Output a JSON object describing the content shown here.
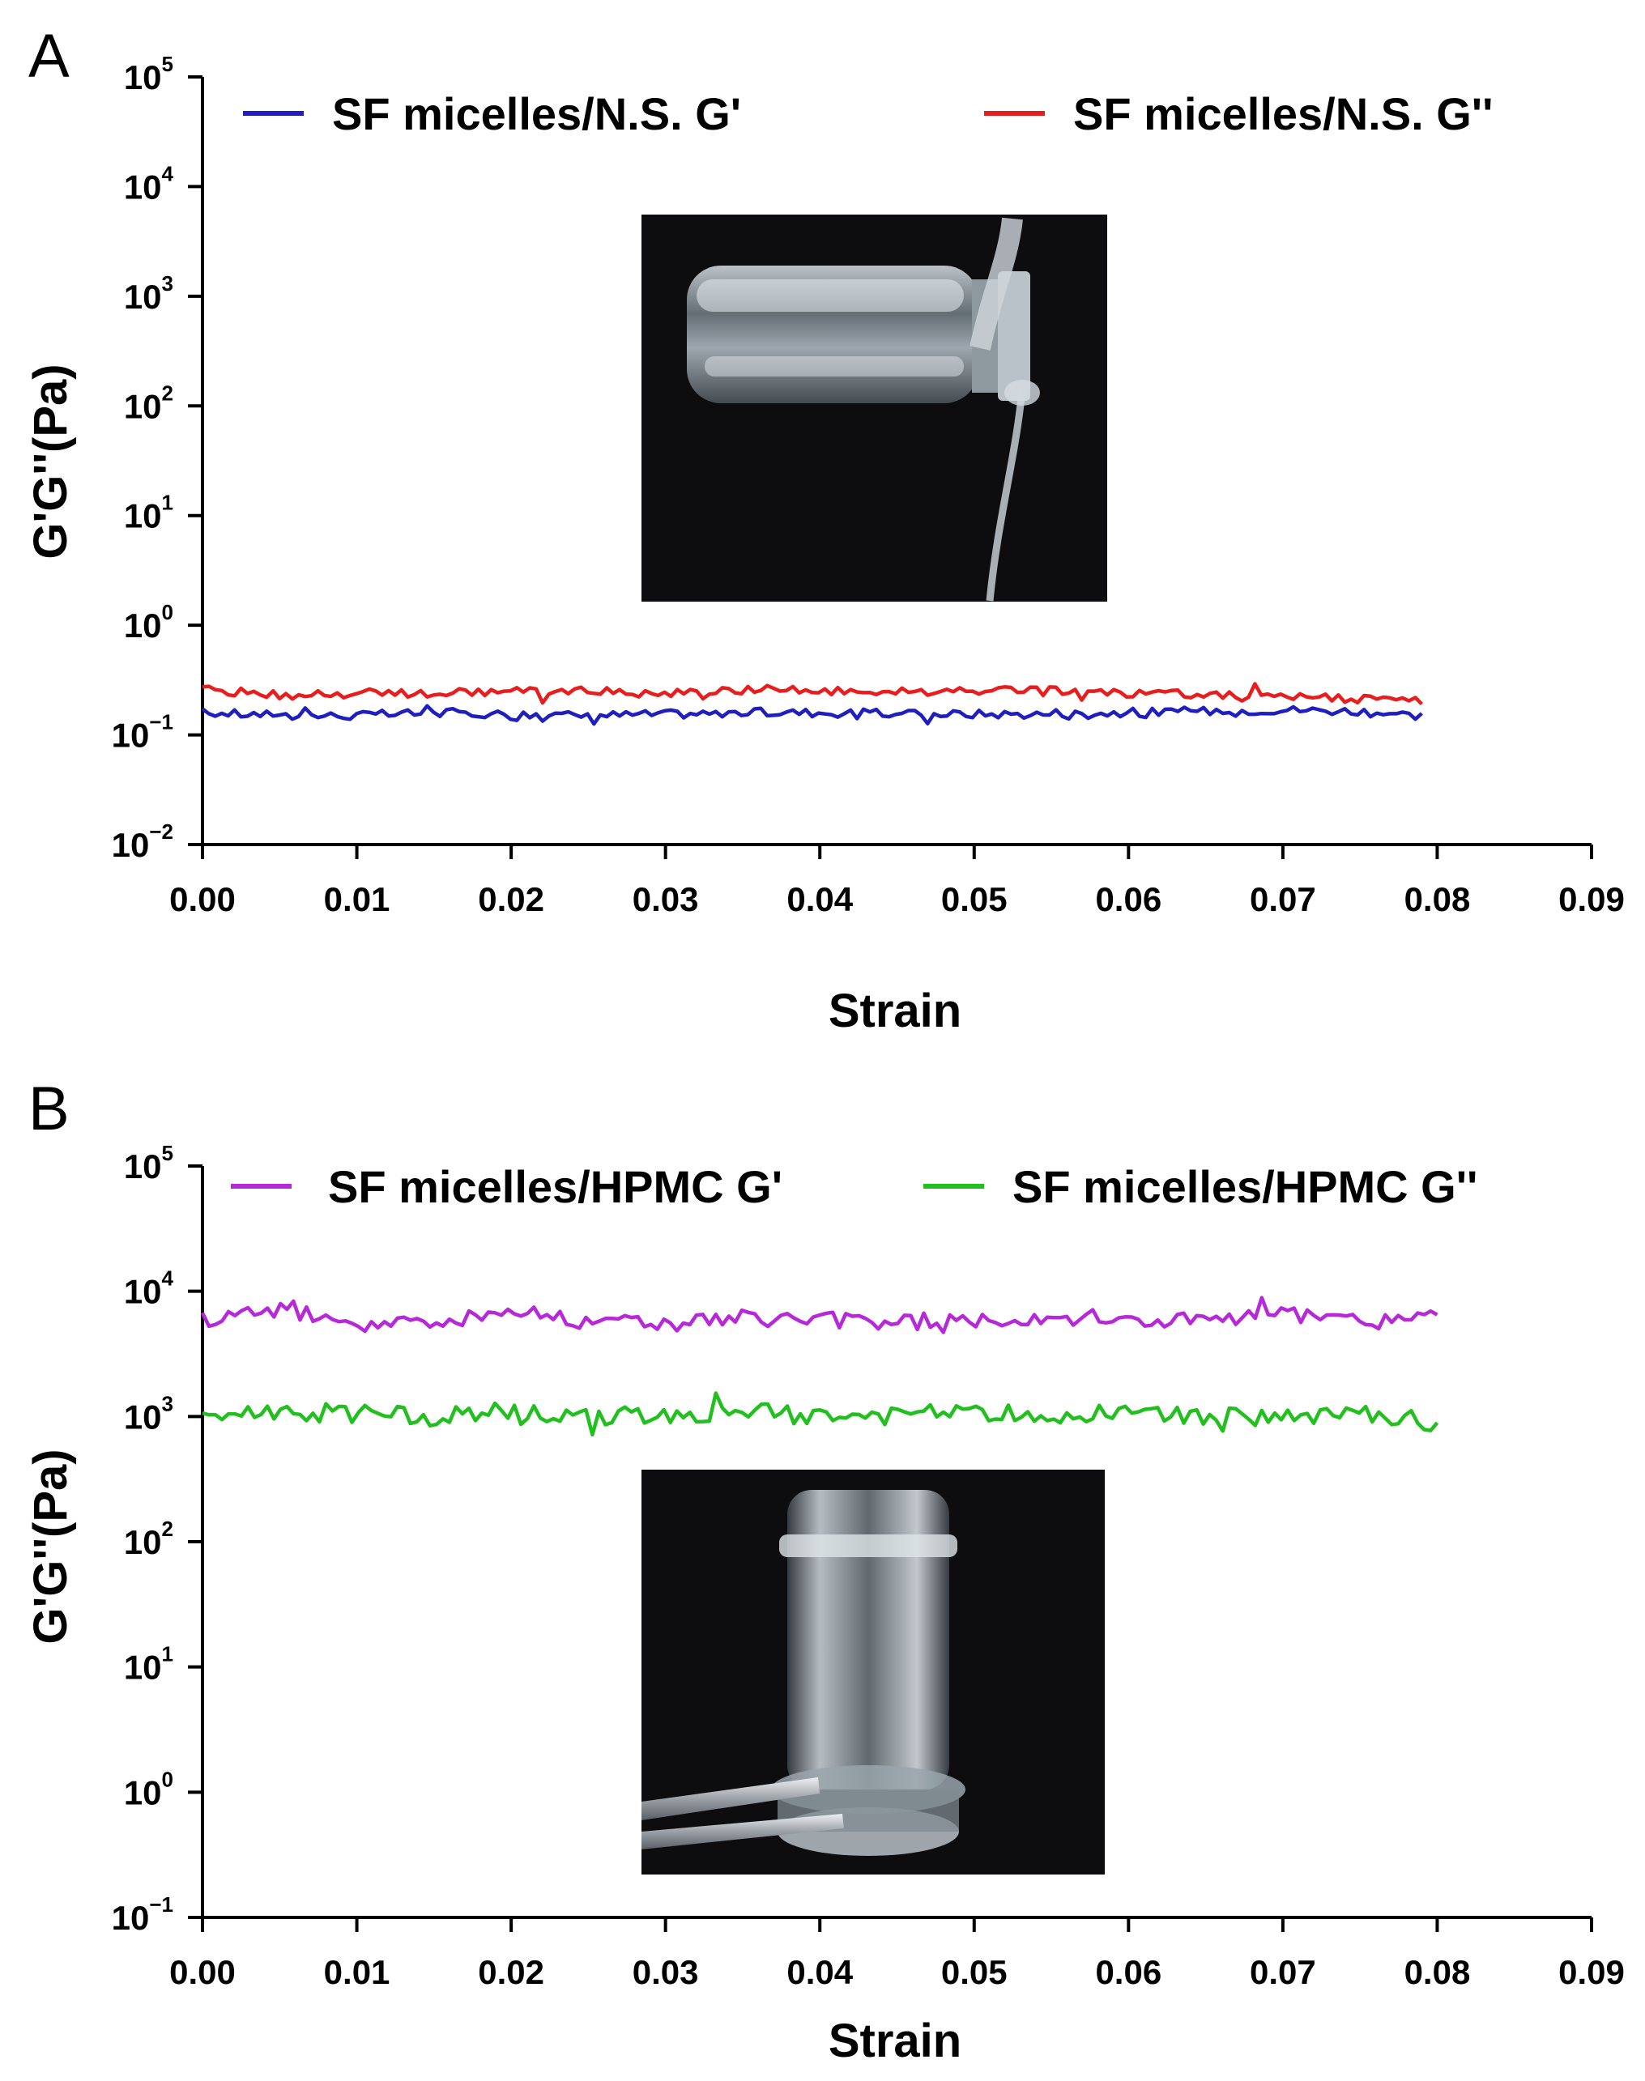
{
  "chart_data": [
    {
      "panel": "A",
      "type": "line",
      "xlabel": "Strain",
      "ylabel": "G'G''(Pa)",
      "x_ticks": [
        "0.00",
        "0.01",
        "0.02",
        "0.03",
        "0.04",
        "0.05",
        "0.06",
        "0.07",
        "0.08",
        "0.09"
      ],
      "xlim": [
        0,
        0.09
      ],
      "ylim": [
        0.01,
        100000
      ],
      "y_scale": "log",
      "y_ticks": [
        {
          "base": "10",
          "exp": "5"
        },
        {
          "base": "10",
          "exp": "4"
        },
        {
          "base": "10",
          "exp": "3"
        },
        {
          "base": "10",
          "exp": "2"
        },
        {
          "base": "10",
          "exp": "1"
        },
        {
          "base": "10",
          "exp": "0"
        },
        {
          "base": "10",
          "exp": "−1"
        },
        {
          "base": "10",
          "exp": "−2"
        }
      ],
      "legend_placement": "top",
      "inset_photo": "vial-tilted-liquid-flowing",
      "series": [
        {
          "name": "SF micelles/N.S.  G'",
          "color": "#1f1fc0",
          "x": [
            0.0,
            0.005,
            0.01,
            0.015,
            0.02,
            0.025,
            0.03,
            0.035,
            0.04,
            0.045,
            0.05,
            0.055,
            0.06,
            0.065,
            0.07,
            0.075,
            0.079
          ],
          "y": [
            0.16,
            0.15,
            0.15,
            0.16,
            0.155,
            0.15,
            0.155,
            0.16,
            0.16,
            0.155,
            0.155,
            0.155,
            0.16,
            0.165,
            0.17,
            0.165,
            0.15
          ]
        },
        {
          "name": "SF micelles/N.S.  G''",
          "color": "#e81e1e",
          "x": [
            0.0,
            0.005,
            0.01,
            0.015,
            0.02,
            0.025,
            0.03,
            0.035,
            0.04,
            0.045,
            0.05,
            0.055,
            0.06,
            0.065,
            0.07,
            0.075,
            0.079
          ],
          "y": [
            0.26,
            0.23,
            0.24,
            0.24,
            0.25,
            0.25,
            0.24,
            0.26,
            0.25,
            0.25,
            0.25,
            0.25,
            0.24,
            0.235,
            0.23,
            0.21,
            0.205
          ]
        }
      ]
    },
    {
      "panel": "B",
      "type": "line",
      "xlabel": "Strain",
      "ylabel": "G'G''(Pa)",
      "x_ticks": [
        "0.00",
        "0.01",
        "0.02",
        "0.03",
        "0.04",
        "0.05",
        "0.06",
        "0.07",
        "0.08",
        "0.09"
      ],
      "xlim": [
        0,
        0.09
      ],
      "ylim": [
        0.1,
        100000
      ],
      "y_scale": "log",
      "y_ticks": [
        {
          "base": "10",
          "exp": "5"
        },
        {
          "base": "10",
          "exp": "4"
        },
        {
          "base": "10",
          "exp": "3"
        },
        {
          "base": "10",
          "exp": "2"
        },
        {
          "base": "10",
          "exp": "1"
        },
        {
          "base": "10",
          "exp": "0"
        },
        {
          "base": "10",
          "exp": "−1"
        }
      ],
      "legend_placement": "top",
      "inset_photo": "vial-inverted-gel-held",
      "series": [
        {
          "name": "SF micelles/HPMC  G'",
          "color": "#b728d8",
          "x": [
            0.0,
            0.005,
            0.01,
            0.015,
            0.02,
            0.025,
            0.03,
            0.035,
            0.04,
            0.045,
            0.05,
            0.055,
            0.06,
            0.065,
            0.07,
            0.075,
            0.08
          ],
          "y": [
            6000,
            7500,
            5500,
            5600,
            7000,
            5800,
            5600,
            6000,
            5900,
            5700,
            6000,
            6500,
            5800,
            6000,
            6300,
            5700,
            6300
          ]
        },
        {
          "name": "SF micelles/HPMC  G''",
          "color": "#22c01e",
          "x": [
            0.0,
            0.005,
            0.01,
            0.015,
            0.02,
            0.025,
            0.03,
            0.035,
            0.04,
            0.045,
            0.05,
            0.055,
            0.06,
            0.065,
            0.07,
            0.075,
            0.08
          ],
          "y": [
            1000,
            1100,
            1050,
            1000,
            1100,
            1000,
            1050,
            1100,
            1000,
            1000,
            1100,
            1050,
            1050,
            1000,
            950,
            1050,
            900
          ]
        }
      ]
    }
  ]
}
